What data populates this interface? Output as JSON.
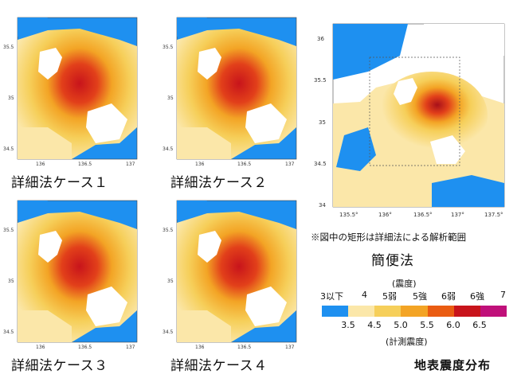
{
  "panels": [
    {
      "id": "case1",
      "label": "詳細法ケース１",
      "yticks": [
        "35.5",
        "35",
        "34.5"
      ],
      "xticks": [
        "136",
        "136.5",
        "137"
      ]
    },
    {
      "id": "case2",
      "label": "詳細法ケース２",
      "yticks": [
        "35.5",
        "35",
        "34.5"
      ],
      "xticks": [
        "136",
        "136.5",
        "137"
      ]
    },
    {
      "id": "case3",
      "label": "詳細法ケース３",
      "yticks": [
        "35.5",
        "35",
        "34.5"
      ],
      "xticks": [
        "136",
        "136.5",
        "137"
      ]
    },
    {
      "id": "case4",
      "label": "詳細法ケース４",
      "yticks": [
        "35.5",
        "35",
        "34.5"
      ],
      "xticks": [
        "136",
        "136.5",
        "137"
      ]
    }
  ],
  "simple_map": {
    "yticks": [
      "36",
      "35.5",
      "35",
      "34.5",
      "34"
    ],
    "xticks": [
      "135.5°",
      "136°",
      "136.5°",
      "137°",
      "137.5°"
    ],
    "note": "※図中の矩形は詳細法による解析範囲",
    "title": "簡便法"
  },
  "legend": {
    "intensity_title": "(震度)",
    "jma_classes": [
      "3以下",
      "4",
      "5弱",
      "5強",
      "6弱",
      "6強",
      "7"
    ],
    "measured_ticks": [
      "3.5",
      "4.5",
      "5.0",
      "5.5",
      "6.0",
      "6.5"
    ],
    "measured_title": "(計測震度)",
    "colors": [
      "#1e90f0",
      "#fbe7a9",
      "#f6cf5a",
      "#f3a425",
      "#ea5c12",
      "#c8141b",
      "#c0107a"
    ]
  },
  "main_title": "地表震度分布"
}
